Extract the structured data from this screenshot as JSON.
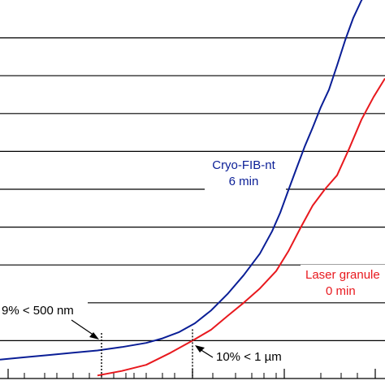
{
  "chart_data": {
    "type": "line",
    "title": "",
    "xlabel": "",
    "ylabel": "",
    "grid": "horizontal",
    "series": [
      {
        "name": "Cryo-FIB-nt",
        "duration": "6 min",
        "color": "#0a1e96",
        "points": [
          [
            0,
            5.0
          ],
          [
            30,
            5.6
          ],
          [
            60,
            6.2
          ],
          [
            90,
            6.8
          ],
          [
            120,
            7.4
          ],
          [
            150,
            8.3
          ],
          [
            180,
            9.4
          ],
          [
            200,
            10.6
          ],
          [
            220,
            12.2
          ],
          [
            240,
            14.6
          ],
          [
            260,
            18.0
          ],
          [
            280,
            22.3
          ],
          [
            300,
            27.3
          ],
          [
            320,
            33.0
          ],
          [
            335,
            38.9
          ],
          [
            345,
            43.8
          ],
          [
            355,
            49.7
          ],
          [
            365,
            55.5
          ],
          [
            375,
            61.2
          ],
          [
            385,
            66.3
          ],
          [
            395,
            71.7
          ],
          [
            405,
            76.3
          ],
          [
            415,
            82.7
          ],
          [
            425,
            89.4
          ],
          [
            435,
            95.3
          ],
          [
            445,
            99.9
          ],
          [
            455,
            103.2
          ],
          [
            465,
            106.7
          ],
          [
            474,
            108.5
          ]
        ]
      },
      {
        "name": "Laser granule",
        "duration": "0 min",
        "color": "#e8191e",
        "points": [
          [
            120,
            0.8
          ],
          [
            150,
            2.0
          ],
          [
            180,
            3.6
          ],
          [
            210,
            6.8
          ],
          [
            237,
            10.0
          ],
          [
            260,
            12.9
          ],
          [
            280,
            16.5
          ],
          [
            300,
            20.0
          ],
          [
            320,
            23.8
          ],
          [
            340,
            28.4
          ],
          [
            355,
            33.6
          ],
          [
            370,
            39.8
          ],
          [
            385,
            45.7
          ],
          [
            400,
            50.0
          ],
          [
            415,
            53.7
          ],
          [
            430,
            60.8
          ],
          [
            445,
            68.4
          ],
          [
            460,
            74.4
          ],
          [
            474,
            79.3
          ]
        ]
      }
    ],
    "annotations": [
      {
        "text": "9% < 500 nm",
        "x": 125,
        "y": 9
      },
      {
        "text": "10% < 1 µm",
        "x": 237,
        "y": 10
      }
    ]
  }
}
